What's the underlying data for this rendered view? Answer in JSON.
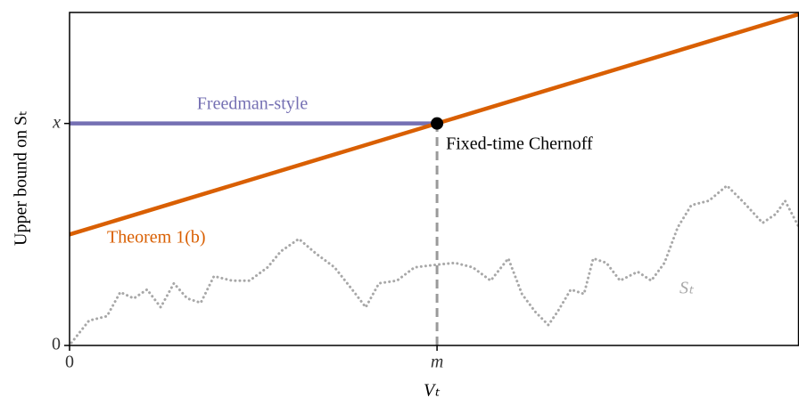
{
  "chart_data": {
    "type": "line",
    "xlabel": "Vₜ",
    "ylabel": "Upper bound on Sₜ",
    "xlim": [
      0,
      1.985
    ],
    "ylim": [
      0,
      1.5
    ],
    "xticks": [
      0,
      {
        "value": 1,
        "label": "m"
      }
    ],
    "yticks": [
      0,
      {
        "value": 1,
        "label": "x"
      }
    ],
    "series": [
      {
        "name": "Freedman-style",
        "color": "#7570b3",
        "x": [
          0,
          1
        ],
        "values": [
          1,
          1
        ]
      },
      {
        "name": "Theorem 1(b)",
        "color": "#d95f02",
        "x": [
          0,
          1.985
        ],
        "values": [
          0.5,
          1.4925
        ]
      },
      {
        "name": "Sₜ",
        "color": "#a8a8a8",
        "style": "dotted",
        "x": [
          0.005,
          0.053,
          0.102,
          0.138,
          0.175,
          0.211,
          0.248,
          0.284,
          0.32,
          0.357,
          0.393,
          0.442,
          0.49,
          0.539,
          0.575,
          0.624,
          0.672,
          0.721,
          0.769,
          0.806,
          0.842,
          0.891,
          0.939,
          1.0,
          1.049,
          1.097,
          1.146,
          1.194,
          1.231,
          1.267,
          1.303,
          1.328,
          1.364,
          1.4,
          1.425,
          1.461,
          1.498,
          1.546,
          1.583,
          1.619,
          1.655,
          1.692,
          1.74,
          1.789,
          1.837,
          1.886,
          1.922,
          1.947,
          1.985
        ],
        "values": [
          0.012,
          0.112,
          0.132,
          0.24,
          0.212,
          0.252,
          0.172,
          0.28,
          0.212,
          0.192,
          0.312,
          0.292,
          0.292,
          0.352,
          0.424,
          0.48,
          0.412,
          0.352,
          0.252,
          0.172,
          0.28,
          0.292,
          0.352,
          0.364,
          0.372,
          0.352,
          0.292,
          0.392,
          0.232,
          0.152,
          0.092,
          0.152,
          0.252,
          0.232,
          0.392,
          0.372,
          0.292,
          0.332,
          0.292,
          0.372,
          0.532,
          0.632,
          0.652,
          0.72,
          0.64,
          0.552,
          0.592,
          0.652,
          0.532
        ]
      }
    ],
    "annotation": {
      "text": "Fixed-time Chernoff",
      "x": 1,
      "y": 1
    }
  }
}
